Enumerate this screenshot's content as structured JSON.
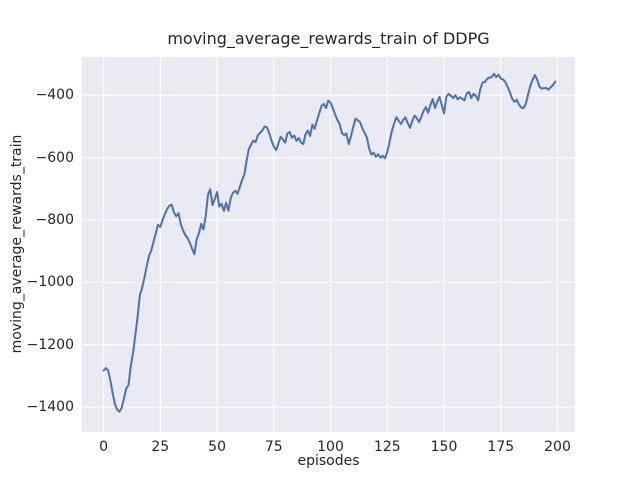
{
  "figure": {
    "title": "moving_average_rewards_train of DDPG",
    "x_axis_label": "episodes",
    "y_axis_label": "moving_average_rewards_train"
  },
  "chart_data": {
    "type": "line",
    "title": "moving_average_rewards_train of DDPG",
    "xlabel": "episodes",
    "ylabel": "moving_average_rewards_train",
    "grid": true,
    "legend": "none",
    "plot_style": "seaborn-darkgrid",
    "xlim": [
      -9.5,
      207.7
    ],
    "ylim": [
      -1480,
      -277
    ],
    "xticks": {
      "values": [
        0,
        25,
        50,
        75,
        100,
        125,
        150,
        175,
        200
      ],
      "labels": [
        "0",
        "25",
        "50",
        "75",
        "100",
        "125",
        "150",
        "175",
        "200"
      ]
    },
    "yticks": {
      "values": [
        -400,
        -600,
        -800,
        -1000,
        -1200,
        -1400
      ],
      "labels": [
        "−400",
        "−600",
        "−800",
        "−1000",
        "−1200",
        "−1400"
      ]
    },
    "colors": {
      "line": "#4c72b0",
      "plot_bg": "#eaeaf2",
      "grid": "#ffffff",
      "text": "#262626",
      "figure_bg": "#ffffff"
    },
    "series": [
      {
        "name": "moving_average_rewards_train",
        "x_start": 0,
        "x_step": 1,
        "values": [
          -1283,
          -1275,
          -1282,
          -1315,
          -1355,
          -1390,
          -1408,
          -1415,
          -1402,
          -1372,
          -1340,
          -1330,
          -1268,
          -1225,
          -1170,
          -1110,
          -1040,
          -1018,
          -985,
          -948,
          -915,
          -898,
          -870,
          -842,
          -815,
          -822,
          -800,
          -782,
          -765,
          -754,
          -751,
          -775,
          -788,
          -778,
          -812,
          -833,
          -848,
          -858,
          -873,
          -892,
          -910,
          -862,
          -843,
          -812,
          -830,
          -788,
          -718,
          -701,
          -752,
          -732,
          -710,
          -757,
          -748,
          -771,
          -744,
          -770,
          -730,
          -713,
          -706,
          -716,
          -694,
          -672,
          -655,
          -610,
          -572,
          -558,
          -545,
          -550,
          -528,
          -520,
          -512,
          -500,
          -503,
          -522,
          -545,
          -564,
          -576,
          -556,
          -533,
          -541,
          -552,
          -522,
          -518,
          -536,
          -529,
          -546,
          -537,
          -551,
          -556,
          -524,
          -513,
          -530,
          -494,
          -507,
          -481,
          -458,
          -434,
          -427,
          -441,
          -417,
          -423,
          -441,
          -461,
          -479,
          -492,
          -521,
          -528,
          -522,
          -556,
          -531,
          -502,
          -475,
          -480,
          -486,
          -506,
          -520,
          -536,
          -571,
          -590,
          -584,
          -597,
          -589,
          -600,
          -594,
          -602,
          -581,
          -548,
          -515,
          -491,
          -470,
          -481,
          -492,
          -479,
          -470,
          -489,
          -504,
          -482,
          -465,
          -473,
          -486,
          -469,
          -450,
          -438,
          -456,
          -431,
          -412,
          -441,
          -421,
          -405,
          -432,
          -458,
          -405,
          -395,
          -401,
          -409,
          -400,
          -413,
          -406,
          -411,
          -416,
          -394,
          -389,
          -409,
          -395,
          -401,
          -416,
          -380,
          -359,
          -357,
          -347,
          -343,
          -341,
          -331,
          -341,
          -334,
          -346,
          -349,
          -357,
          -373,
          -390,
          -410,
          -421,
          -414,
          -429,
          -439,
          -441,
          -428,
          -399,
          -369,
          -350,
          -335,
          -349,
          -372,
          -378,
          -377,
          -376,
          -382,
          -374,
          -367,
          -356
        ]
      }
    ]
  }
}
